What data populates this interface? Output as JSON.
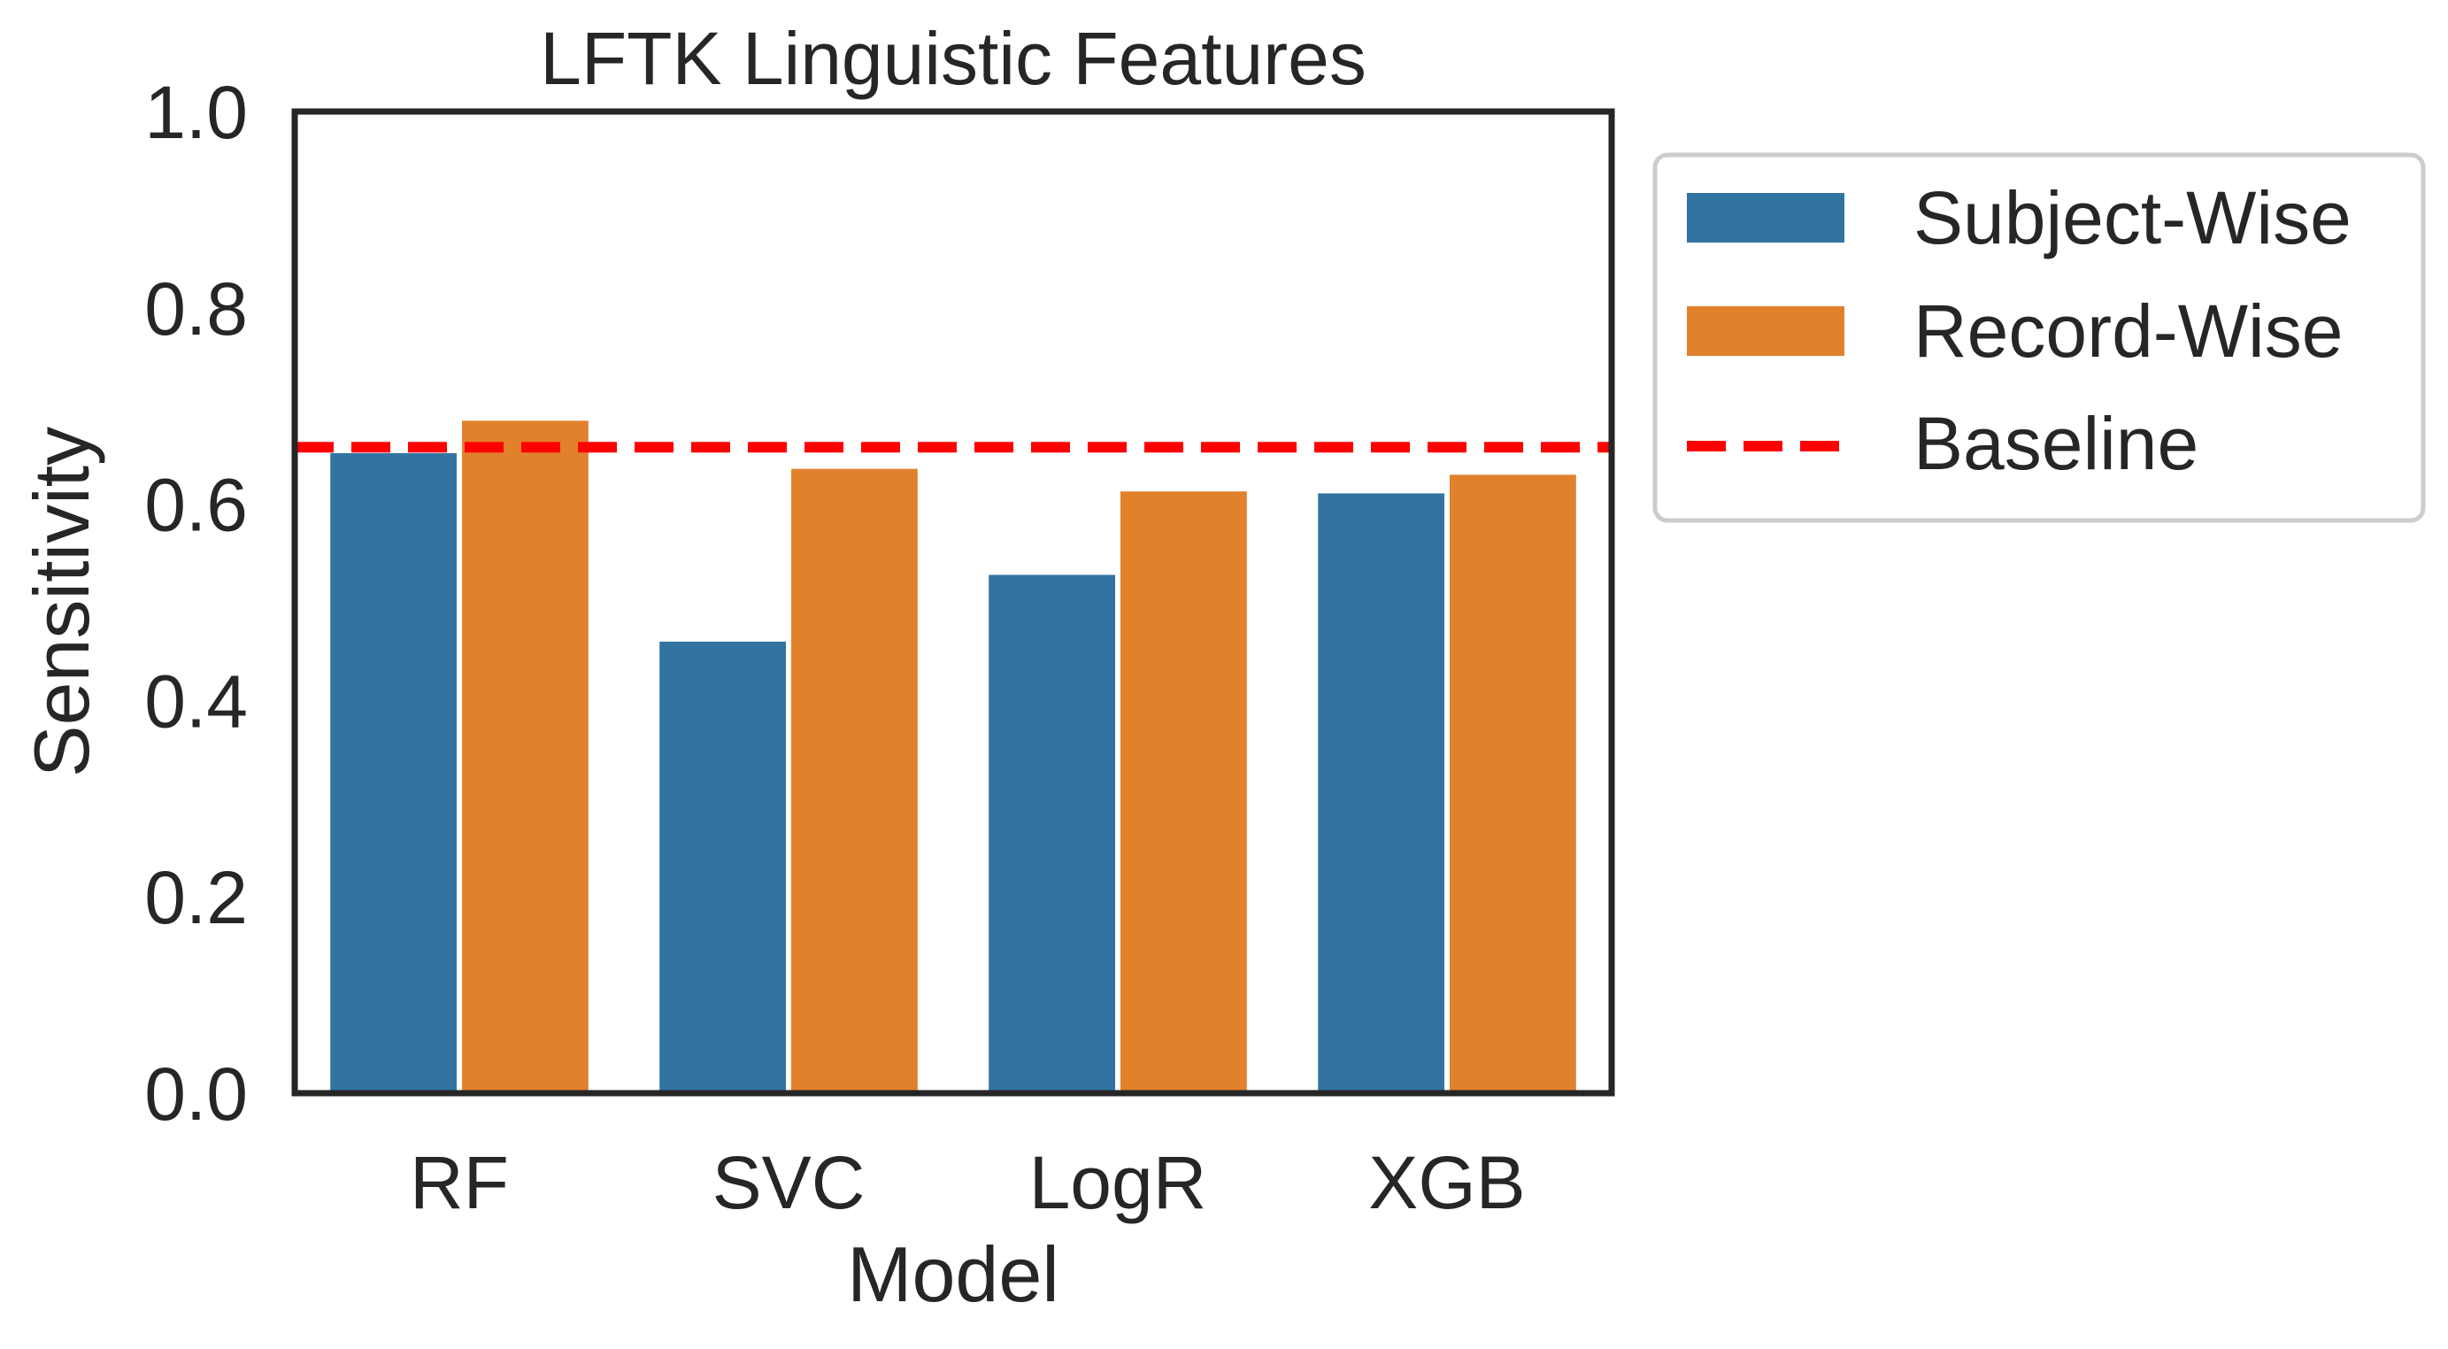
{
  "chart_data": {
    "type": "bar",
    "title": "LFTK Linguistic Features",
    "xlabel": "Model",
    "ylabel": "Sensitivity",
    "categories": [
      "RF",
      "SVC",
      "LogR",
      "XGB"
    ],
    "ylim": [
      0,
      1.0
    ],
    "yticks": [
      "0.0",
      "0.2",
      "0.4",
      "0.6",
      "0.8",
      "1.0"
    ],
    "series": [
      {
        "name": "Subject-Wise",
        "color": "#3274a1",
        "values": [
          0.652,
          0.46,
          0.528,
          0.611
        ]
      },
      {
        "name": "Record-Wise",
        "color": "#e1812c",
        "values": [
          0.685,
          0.636,
          0.613,
          0.63
        ]
      }
    ],
    "baseline": {
      "name": "Baseline",
      "value": 0.658,
      "color": "#ff0000",
      "style": "dashed"
    },
    "grid": false,
    "legend": {
      "placement": "outside-right-top"
    }
  }
}
